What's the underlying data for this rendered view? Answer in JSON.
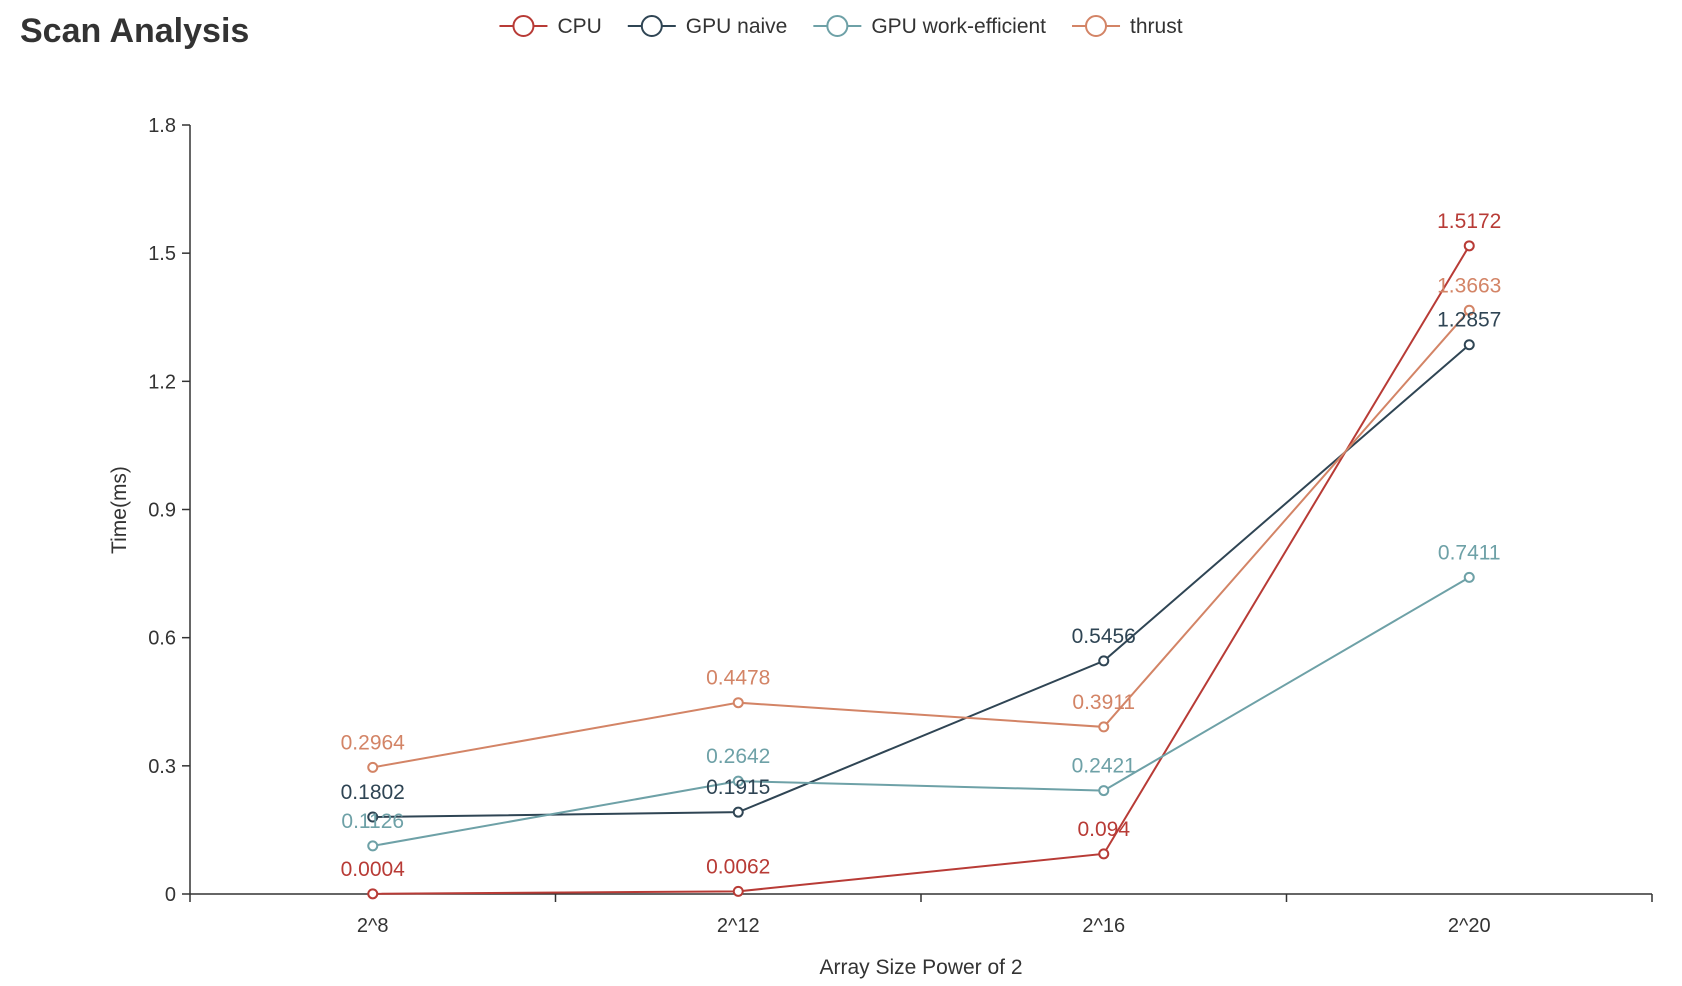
{
  "chart_data": {
    "type": "line",
    "title": "Scan Analysis",
    "xlabel": "Array Size Power of 2",
    "ylabel": "Time(ms)",
    "categories": [
      "2^8",
      "2^12",
      "2^16",
      "2^20"
    ],
    "yticks": [
      "0",
      "0.3",
      "0.6",
      "0.9",
      "1.2",
      "1.5",
      "1.8"
    ],
    "ylim": [
      0,
      1.8
    ],
    "legend_position": "top-center",
    "grid": false,
    "series": [
      {
        "name": "CPU",
        "color": "#b83b36",
        "values": [
          0.0004,
          0.0062,
          0.094,
          1.5172
        ]
      },
      {
        "name": "GPU naive",
        "color": "#2f4554",
        "values": [
          0.1802,
          0.1915,
          0.5456,
          1.2857
        ]
      },
      {
        "name": "GPU work-efficient",
        "color": "#6ea1a7",
        "values": [
          0.1126,
          0.2642,
          0.2421,
          0.7411
        ]
      },
      {
        "name": "thrust",
        "color": "#d38466",
        "values": [
          0.2964,
          0.4478,
          0.3911,
          1.3663
        ]
      }
    ]
  }
}
